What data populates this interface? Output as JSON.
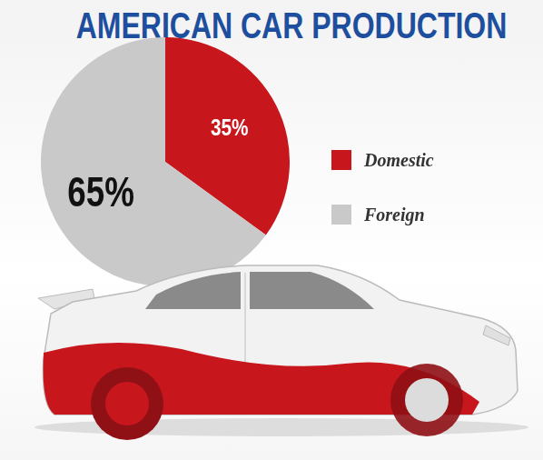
{
  "chart_data": {
    "type": "pie",
    "title": "AMERICAN CAR PRODUCTION",
    "categories": [
      "Domestic",
      "Foreign"
    ],
    "values": [
      35,
      65
    ],
    "value_labels": [
      "35%",
      "65%"
    ],
    "colors": [
      "#c8161d",
      "#c9c9c9"
    ],
    "data_labels": true,
    "legend": "right"
  }
}
